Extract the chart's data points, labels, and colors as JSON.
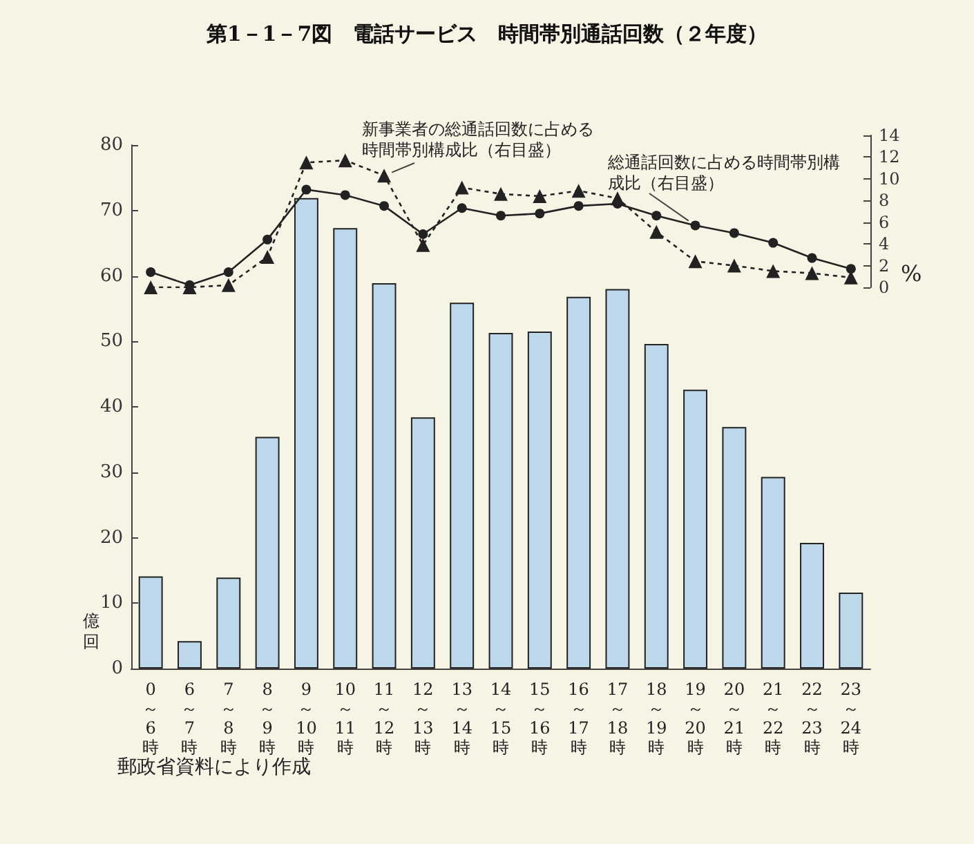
{
  "chart_data": [
    {
      "type": "bar",
      "title": "第1－1－7図　電話サービス　時間帯別通話回数（２年度）",
      "categories": [
        "0～6時",
        "6～7時",
        "7～8時",
        "8～9時",
        "9～10時",
        "10～11時",
        "11～12時",
        "12～13時",
        "13～14時",
        "14～15時",
        "15～16時",
        "16～17時",
        "17～18時",
        "18～19時",
        "19～20時",
        "20～21時",
        "21～22時",
        "22～23時",
        "23～24時"
      ],
      "series": [
        {
          "color": "#bcd8ea",
          "values": [
            14.1,
            4.2,
            13.9,
            35.4,
            71.9,
            67.3,
            58.9,
            38.4,
            55.9,
            51.3,
            51.5,
            56.8,
            58.0,
            49.6,
            42.6,
            36.9,
            29.3,
            19.2,
            11.6
          ]
        }
      ],
      "ylabel": "億回",
      "ylim": [
        0,
        80
      ],
      "yticks": [
        0,
        10,
        20,
        30,
        40,
        50,
        60,
        70,
        80
      ],
      "grid": false,
      "annotations": [
        "郵政省資料により作成"
      ]
    },
    {
      "type": "line",
      "categories": [
        "0～6時",
        "6～7時",
        "7～8時",
        "8～9時",
        "9～10時",
        "10～11時",
        "11～12時",
        "12～13時",
        "13～14時",
        "14～15時",
        "15～16時",
        "16～17時",
        "17～18時",
        "18～19時",
        "19～20時",
        "20～21時",
        "21～22時",
        "22～23時",
        "23～24時"
      ],
      "series": [
        {
          "color": "#222222",
          "marker": "triangle",
          "line_style": "dashed",
          "values": [
            0.0,
            0.0,
            0.2,
            2.8,
            11.5,
            11.7,
            10.3,
            3.9,
            9.2,
            8.6,
            8.4,
            8.9,
            8.2,
            5.1,
            2.4,
            2.0,
            1.5,
            1.3,
            0.9
          ]
        },
        {
          "color": "#222222",
          "marker": "circle",
          "line_style": "solid",
          "values": [
            1.4,
            0.2,
            1.4,
            4.4,
            9.0,
            8.5,
            7.5,
            4.9,
            7.3,
            6.6,
            6.8,
            7.5,
            7.7,
            6.6,
            5.7,
            5.0,
            4.1,
            2.7,
            1.7
          ]
        }
      ],
      "ylabel": "%",
      "ylim": [
        0,
        14
      ],
      "yticks": [
        0,
        2,
        4,
        6,
        8,
        10,
        12,
        14
      ],
      "grid": false,
      "tick_labels": "y",
      "annotations": [
        {
          "text": "新事業者の総通話回数に占める時間帯別構成比（右目盛）",
          "x": "11～12時",
          "y": 10.3
        },
        {
          "text": "総通話回数に占める時間帯別構成比（右目盛）",
          "x": "19～20時",
          "y": 5.7
        }
      ]
    }
  ]
}
